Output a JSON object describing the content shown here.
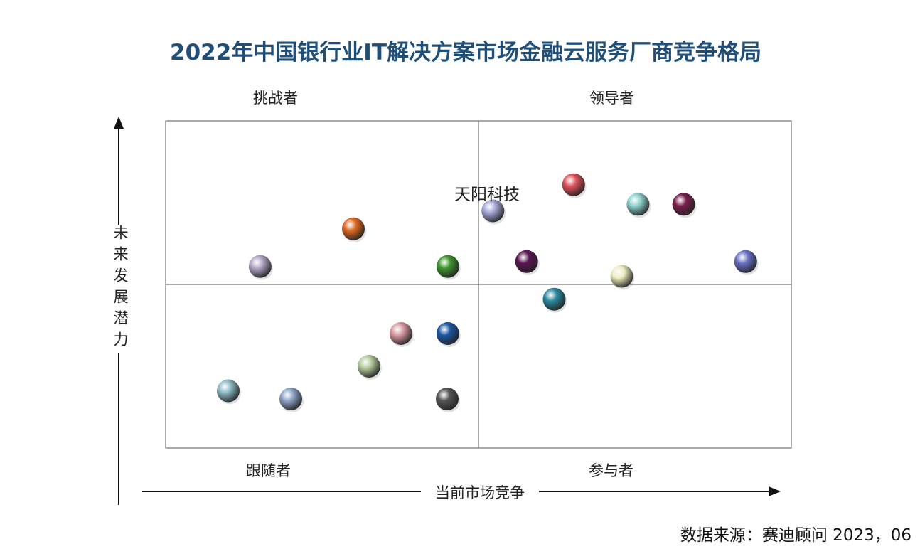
{
  "header": {
    "title": "2022年中国银行业IT解决方案市场金融云服务厂商竞争格局"
  },
  "footer": {
    "source": "数据来源：赛迪顾问 2023，06"
  },
  "chart_data": {
    "type": "scatter",
    "title": "2022年中国银行业IT解决方案市场金融云服务厂商竞争格局",
    "xlabel": "当前市场竞争",
    "ylabel": "未来发展潜力",
    "xlim": [
      0,
      100
    ],
    "ylim": [
      0,
      100
    ],
    "grid": false,
    "quadrants": {
      "top_left": "挑战者",
      "top_right": "领导者",
      "bottom_left": "跟随者",
      "bottom_right": "参与者"
    },
    "points": [
      {
        "x": 52.3,
        "y": 72.5,
        "label": "天阳科技",
        "color": "#a7a9d8"
      },
      {
        "x": 65.2,
        "y": 80.5,
        "label": "",
        "color": "#e0525a"
      },
      {
        "x": 75.5,
        "y": 74.5,
        "label": "",
        "color": "#8fd3d0"
      },
      {
        "x": 82.8,
        "y": 74.5,
        "label": "",
        "color": "#7a1e4e"
      },
      {
        "x": 57.7,
        "y": 57.0,
        "label": "",
        "color": "#5a1553"
      },
      {
        "x": 92.7,
        "y": 57.0,
        "label": "",
        "color": "#6b73c7"
      },
      {
        "x": 72.9,
        "y": 52.5,
        "label": "",
        "color": "#eeeec0"
      },
      {
        "x": 62.1,
        "y": 45.5,
        "label": "",
        "color": "#2a8aa0"
      },
      {
        "x": 30.0,
        "y": 67.0,
        "label": "",
        "color": "#e06a22"
      },
      {
        "x": 15.1,
        "y": 55.5,
        "label": "",
        "color": "#b4a6c8"
      },
      {
        "x": 45.1,
        "y": 55.5,
        "label": "",
        "color": "#3f962e"
      },
      {
        "x": 37.6,
        "y": 35.0,
        "label": "",
        "color": "#d89aa0"
      },
      {
        "x": 45.1,
        "y": 35.0,
        "label": "",
        "color": "#1a56a0"
      },
      {
        "x": 32.5,
        "y": 25.0,
        "label": "",
        "color": "#b6cc9c"
      },
      {
        "x": 10.0,
        "y": 17.5,
        "label": "",
        "color": "#8fbdc8"
      },
      {
        "x": 20.0,
        "y": 15.0,
        "label": "",
        "color": "#8fa5c8"
      },
      {
        "x": 45.0,
        "y": 15.0,
        "label": "",
        "color": "#555555"
      }
    ]
  }
}
